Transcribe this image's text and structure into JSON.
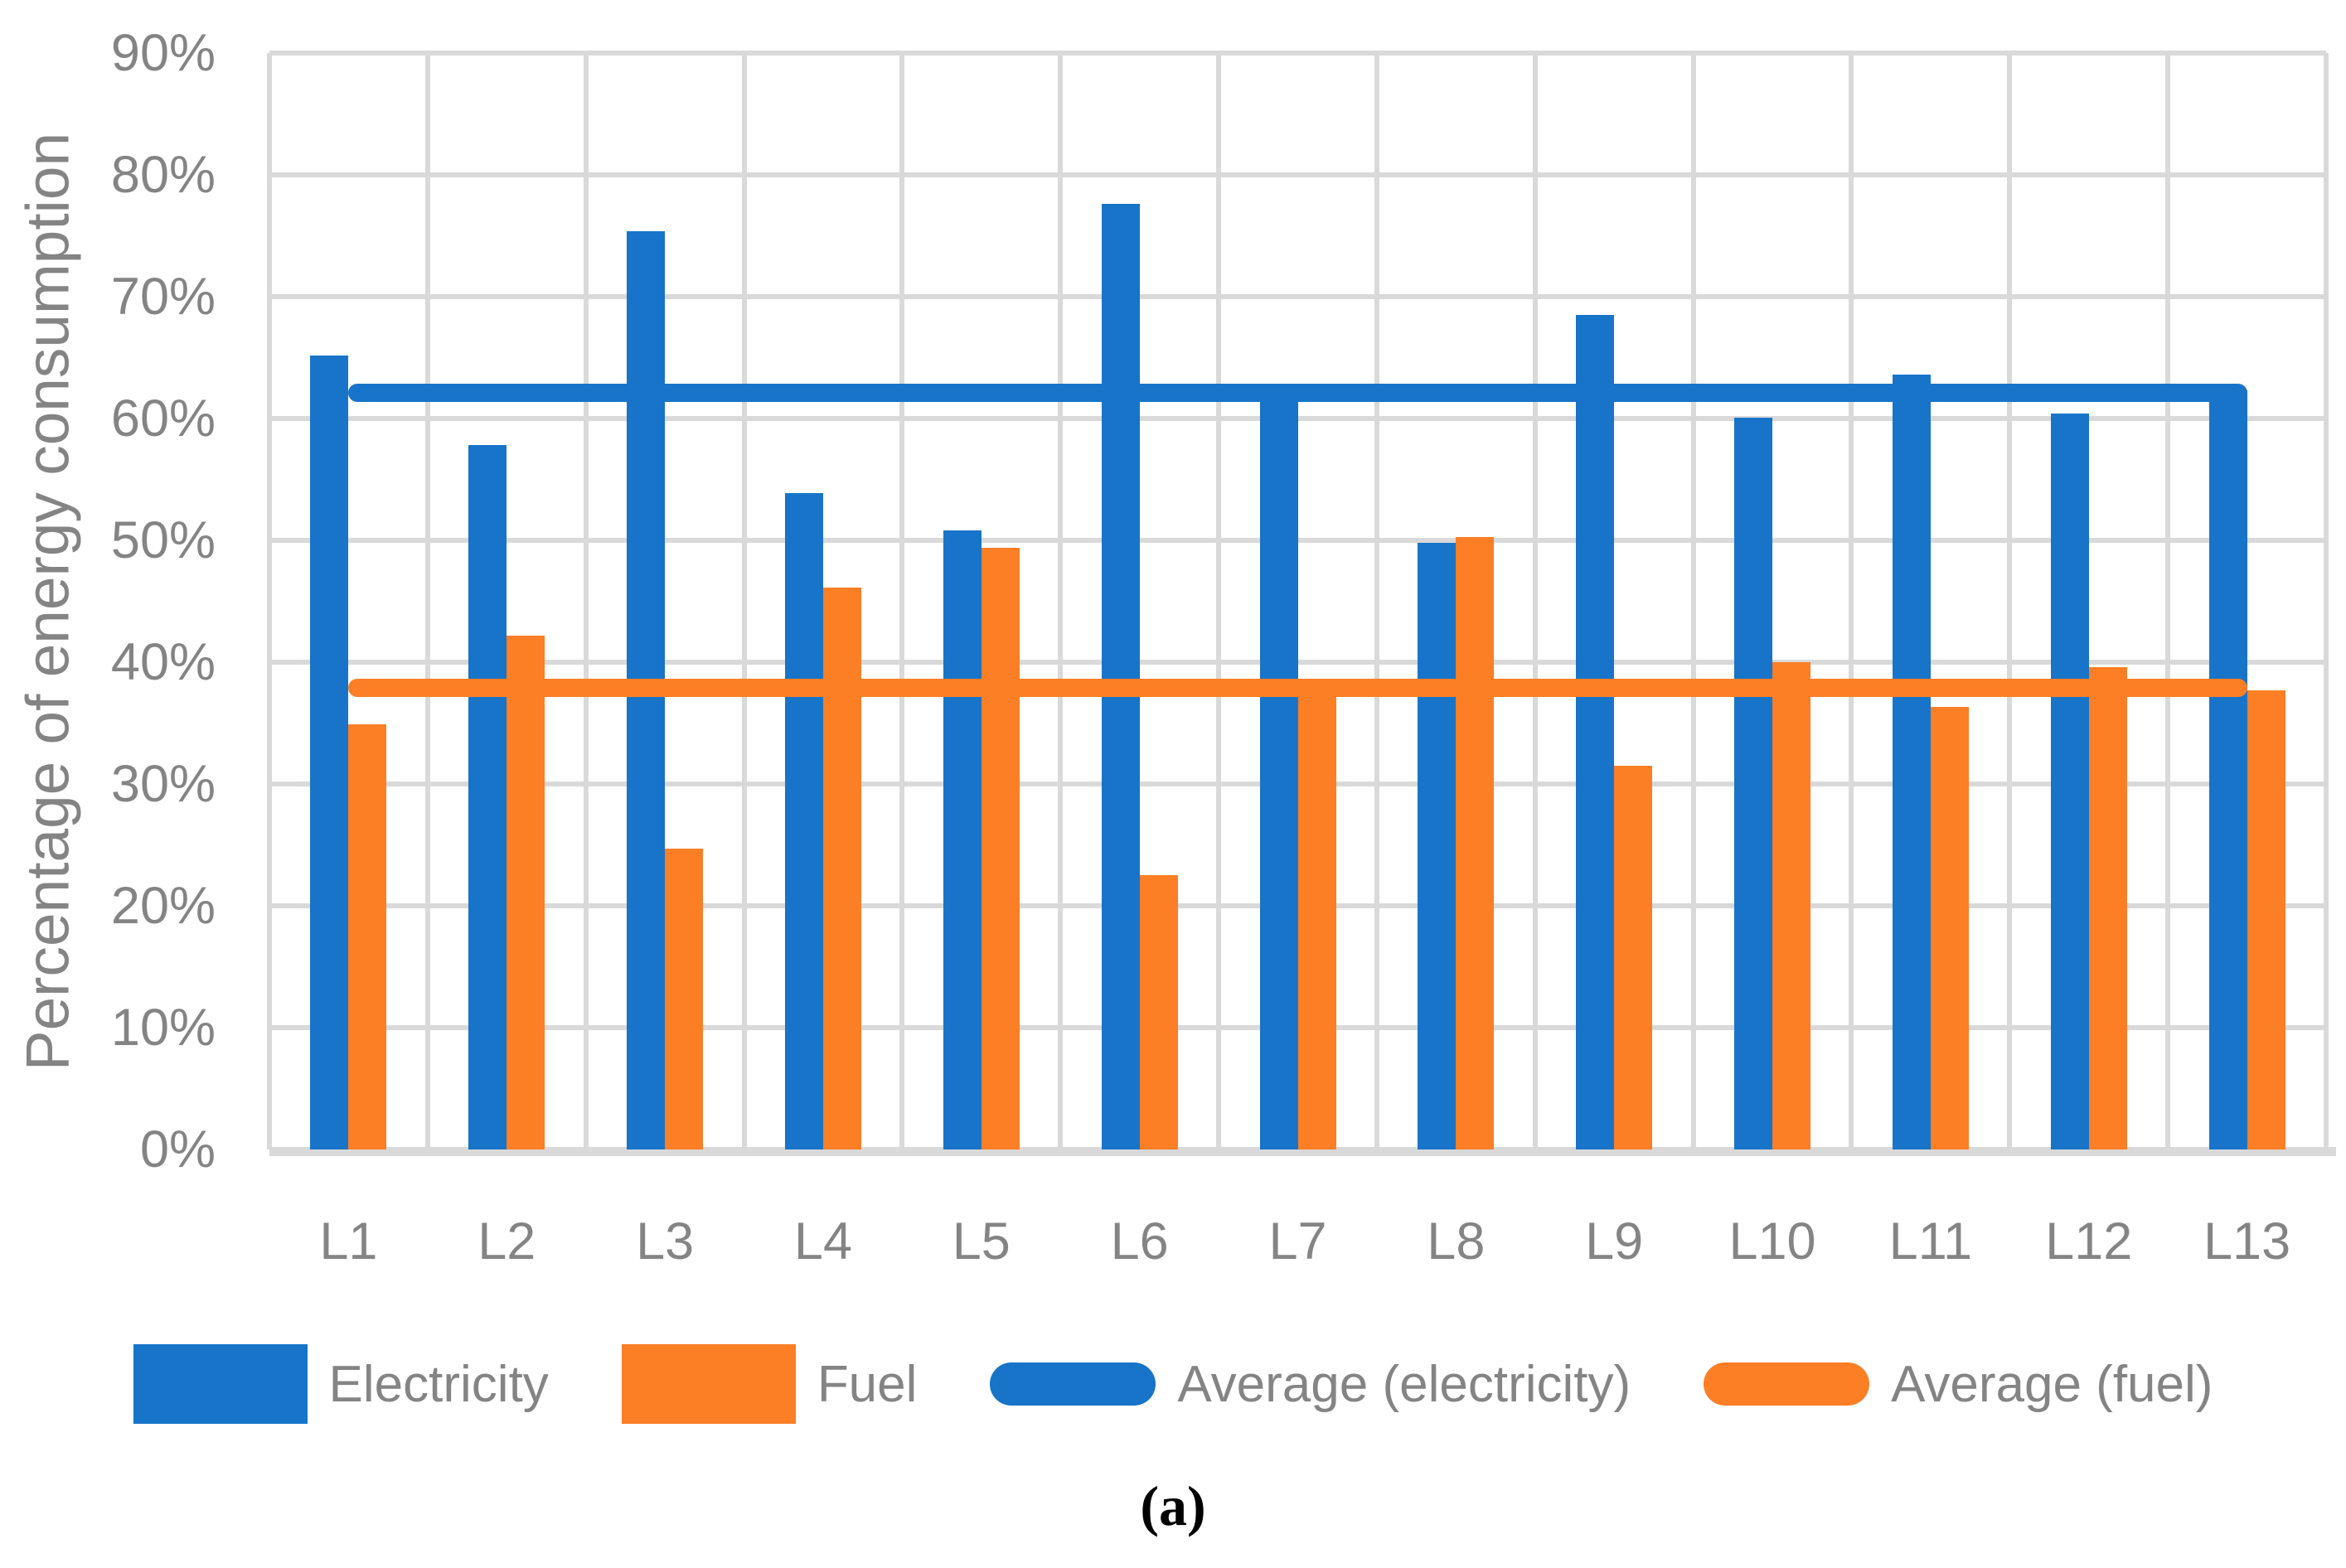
{
  "caption": "(a)",
  "colors": {
    "electricity_blue": "#1774C8",
    "fuel_orange": "#FC7E25",
    "gridline": "#D9D9D9",
    "axis_text": "#848484"
  },
  "chart_data": {
    "type": "bar",
    "title": "",
    "xlabel": "",
    "ylabel": "Percentage of energy consumption",
    "ylim": [
      0,
      90
    ],
    "grid": true,
    "legend_position": "bottom",
    "yticks": [
      "0%",
      "10%",
      "20%",
      "30%",
      "40%",
      "50%",
      "60%",
      "70%",
      "80%",
      "90%"
    ],
    "categories": [
      "L1",
      "L2",
      "L3",
      "L4",
      "L5",
      "L6",
      "L7",
      "L8",
      "L9",
      "L10",
      "L11",
      "L12",
      "L13"
    ],
    "series": [
      {
        "name": "Electricity",
        "type": "bar",
        "color": "#1774C8",
        "values": [
          65.2,
          57.8,
          75.4,
          53.9,
          50.8,
          77.6,
          62.0,
          49.8,
          68.5,
          60.1,
          63.6,
          60.4,
          62.3
        ]
      },
      {
        "name": "Fuel",
        "type": "bar",
        "color": "#FC7E25",
        "values": [
          34.9,
          42.2,
          24.7,
          46.1,
          49.4,
          22.5,
          37.9,
          50.3,
          31.5,
          40.0,
          36.3,
          39.6,
          37.7
        ]
      },
      {
        "name": "Average (electricity)",
        "type": "line",
        "color": "#1774C8",
        "value": 62.1
      },
      {
        "name": "Average (fuel)",
        "type": "line",
        "color": "#FC7E25",
        "value": 37.9
      }
    ]
  }
}
